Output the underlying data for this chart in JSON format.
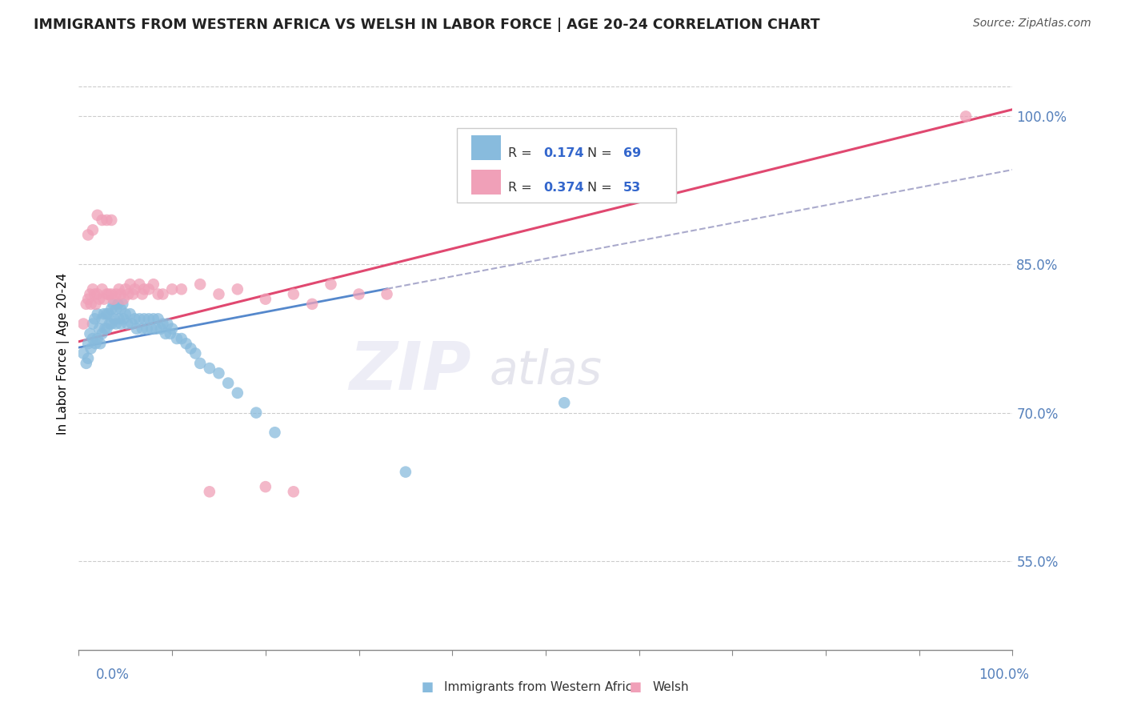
{
  "title": "IMMIGRANTS FROM WESTERN AFRICA VS WELSH IN LABOR FORCE | AGE 20-24 CORRELATION CHART",
  "source": "Source: ZipAtlas.com",
  "ylabel": "In Labor Force | Age 20-24",
  "ytick_labels": [
    "55.0%",
    "70.0%",
    "85.0%",
    "100.0%"
  ],
  "ytick_values": [
    0.55,
    0.7,
    0.85,
    1.0
  ],
  "xlim": [
    0.0,
    1.0
  ],
  "ylim": [
    0.46,
    1.06
  ],
  "watermark_part1": "ZIP",
  "watermark_part2": "atlas",
  "legend_r1": "0.174",
  "legend_n1": "69",
  "legend_r2": "0.374",
  "legend_n2": "53",
  "blue_color": "#88BBDD",
  "pink_color": "#F0A0B8",
  "blue_line_color": "#5588CC",
  "gray_line_color": "#AAAACC",
  "pink_line_color": "#E04870",
  "blue_scatter_x": [
    0.005,
    0.008,
    0.01,
    0.01,
    0.012,
    0.013,
    0.015,
    0.015,
    0.017,
    0.018,
    0.02,
    0.02,
    0.022,
    0.023,
    0.025,
    0.025,
    0.027,
    0.028,
    0.03,
    0.03,
    0.032,
    0.033,
    0.035,
    0.035,
    0.037,
    0.038,
    0.04,
    0.04,
    0.042,
    0.043,
    0.045,
    0.045,
    0.047,
    0.048,
    0.05,
    0.052,
    0.055,
    0.057,
    0.06,
    0.062,
    0.065,
    0.068,
    0.07,
    0.073,
    0.075,
    0.078,
    0.08,
    0.083,
    0.085,
    0.088,
    0.09,
    0.093,
    0.095,
    0.098,
    0.1,
    0.105,
    0.11,
    0.115,
    0.12,
    0.125,
    0.13,
    0.14,
    0.15,
    0.16,
    0.17,
    0.19,
    0.21,
    0.35,
    0.52
  ],
  "blue_scatter_y": [
    0.76,
    0.75,
    0.77,
    0.755,
    0.78,
    0.765,
    0.79,
    0.775,
    0.795,
    0.77,
    0.8,
    0.775,
    0.785,
    0.77,
    0.795,
    0.78,
    0.8,
    0.785,
    0.8,
    0.785,
    0.8,
    0.79,
    0.805,
    0.79,
    0.81,
    0.795,
    0.805,
    0.79,
    0.81,
    0.795,
    0.805,
    0.79,
    0.81,
    0.795,
    0.8,
    0.79,
    0.8,
    0.79,
    0.795,
    0.785,
    0.795,
    0.785,
    0.795,
    0.785,
    0.795,
    0.785,
    0.795,
    0.785,
    0.795,
    0.785,
    0.79,
    0.78,
    0.79,
    0.78,
    0.785,
    0.775,
    0.775,
    0.77,
    0.765,
    0.76,
    0.75,
    0.745,
    0.74,
    0.73,
    0.72,
    0.7,
    0.68,
    0.64,
    0.71
  ],
  "pink_scatter_x": [
    0.005,
    0.008,
    0.01,
    0.012,
    0.013,
    0.015,
    0.017,
    0.018,
    0.02,
    0.022,
    0.025,
    0.027,
    0.03,
    0.032,
    0.035,
    0.037,
    0.04,
    0.043,
    0.045,
    0.048,
    0.05,
    0.053,
    0.055,
    0.058,
    0.06,
    0.065,
    0.068,
    0.07,
    0.075,
    0.08,
    0.085,
    0.09,
    0.1,
    0.11,
    0.13,
    0.15,
    0.17,
    0.2,
    0.23,
    0.25,
    0.27,
    0.3,
    0.33,
    0.01,
    0.015,
    0.02,
    0.025,
    0.03,
    0.035,
    0.14,
    0.2,
    0.23,
    0.95
  ],
  "pink_scatter_y": [
    0.79,
    0.81,
    0.815,
    0.82,
    0.81,
    0.825,
    0.82,
    0.81,
    0.82,
    0.815,
    0.825,
    0.815,
    0.82,
    0.82,
    0.82,
    0.815,
    0.82,
    0.825,
    0.82,
    0.815,
    0.825,
    0.82,
    0.83,
    0.82,
    0.825,
    0.83,
    0.82,
    0.825,
    0.825,
    0.83,
    0.82,
    0.82,
    0.825,
    0.825,
    0.83,
    0.82,
    0.825,
    0.815,
    0.82,
    0.81,
    0.83,
    0.82,
    0.82,
    0.88,
    0.885,
    0.9,
    0.895,
    0.895,
    0.895,
    0.62,
    0.625,
    0.62,
    1.0
  ]
}
